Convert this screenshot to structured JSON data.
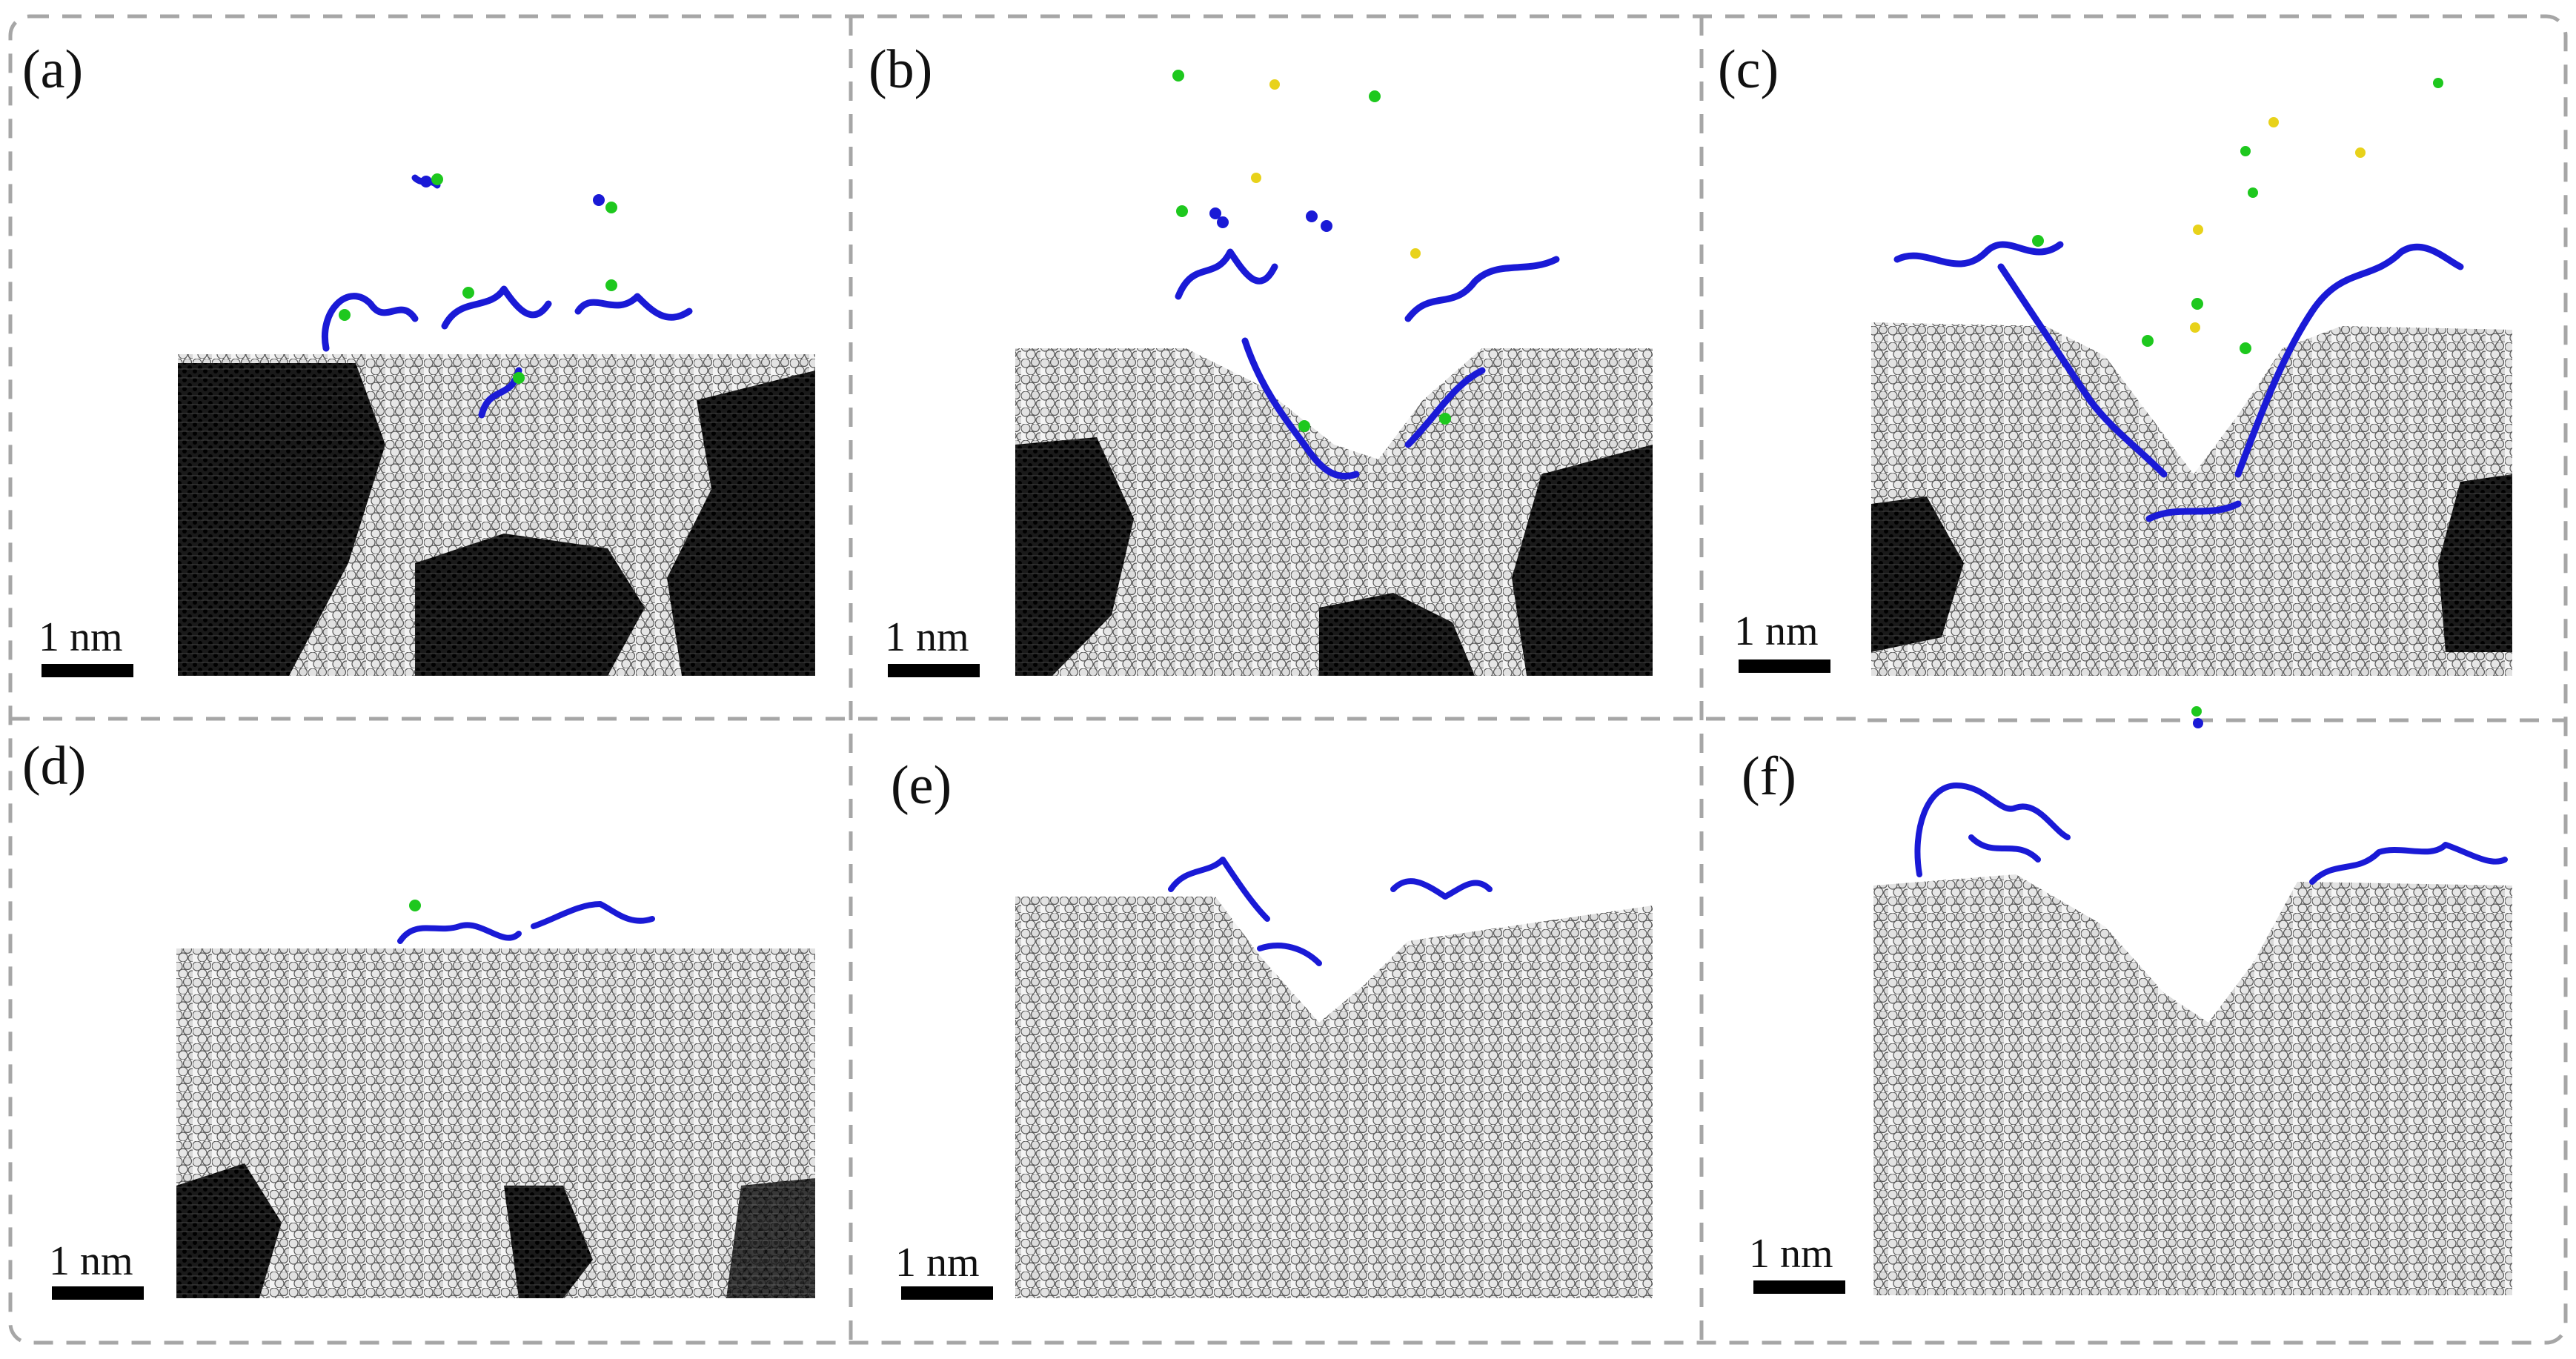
{
  "panels": [
    {
      "id": "a",
      "label": "(a)",
      "scale_label": "1 nm"
    },
    {
      "id": "b",
      "label": "(b)",
      "scale_label": "1 nm"
    },
    {
      "id": "c",
      "label": "(c)",
      "scale_label": "1 nm"
    },
    {
      "id": "d",
      "label": "(d)",
      "scale_label": "1 nm"
    },
    {
      "id": "e",
      "label": "(e)",
      "scale_label": "1 nm"
    },
    {
      "id": "f",
      "label": "(f)",
      "scale_label": "1 nm"
    }
  ],
  "colors": {
    "frame": "#a6a6a6",
    "atom_white": "#ededed",
    "atom_black": "#0a0a0a",
    "atom_blue": "#1a1ad6",
    "atom_green": "#1ec81e",
    "atom_yellow": "#e8d21a"
  }
}
